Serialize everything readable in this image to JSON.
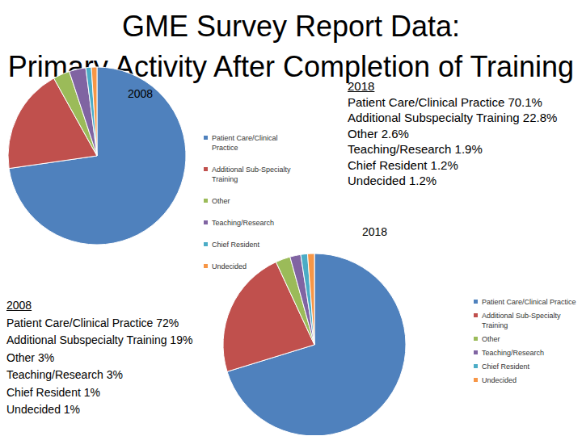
{
  "title": [
    "GME Survey Report Data:",
    "Primary Activity After Completion of Training"
  ],
  "chart_data": [
    {
      "type": "pie",
      "title": "2008",
      "categories": [
        "Patient Care/Clinical Practice",
        "Additional Sub-Specialty Training",
        "Other",
        "Teaching/Research",
        "Chief Resident",
        "Undecided"
      ],
      "values": [
        72,
        19,
        3,
        3,
        1,
        1
      ],
      "colors": [
        "#4f81bd",
        "#c0504d",
        "#9bbb59",
        "#8064a2",
        "#4bacc6",
        "#f79646"
      ],
      "legend": "right",
      "annotation": {
        "title": "2008",
        "lines": [
          "Patient Care/Clinical Practice 72%",
          "Additional Subspecialty Training 19%",
          "Other 3%",
          "Teaching/Research 3%",
          "Chief Resident 1%",
          "Undecided 1%"
        ]
      }
    },
    {
      "type": "pie",
      "title": "2018",
      "categories": [
        "Patient Care/Clinical Practice",
        "Additional Sub-Specialty Training",
        "Other",
        "Teaching/Research",
        "Chief Resident",
        "Undecided"
      ],
      "values": [
        70.1,
        22.8,
        2.6,
        1.9,
        1.2,
        1.2
      ],
      "colors": [
        "#4f81bd",
        "#c0504d",
        "#9bbb59",
        "#8064a2",
        "#4bacc6",
        "#f79646"
      ],
      "legend": "right",
      "annotation": {
        "title": "2018",
        "lines": [
          "Patient Care/Clinical Practice 70.1%",
          "Additional Subspecialty Training 22.8%",
          "Other 2.6%",
          "Teaching/Research 1.9%",
          "Chief Resident 1.2%",
          "Undecided 1.2%"
        ]
      }
    }
  ]
}
